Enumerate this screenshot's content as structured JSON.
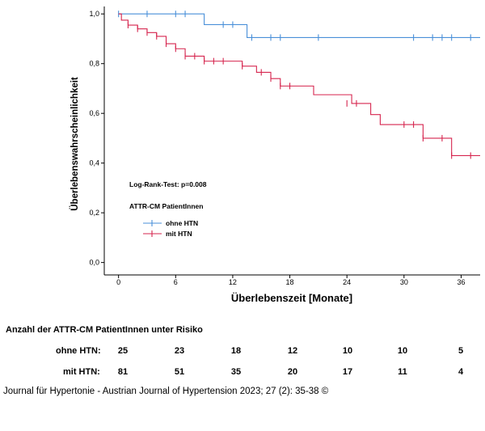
{
  "chart_data": {
    "type": "line",
    "subtype": "kaplan-meier",
    "xlabel": "Überlebenszeit [Monate]",
    "ylabel": "Überlebenswahrscheinlichkeit",
    "xlim": [
      -1.5,
      38
    ],
    "ylim": [
      -0.05,
      1.03
    ],
    "x_ticks": [
      0,
      6,
      12,
      18,
      24,
      30,
      36
    ],
    "y_ticks": [
      0.0,
      0.2,
      0.4,
      0.6,
      0.8,
      1.0
    ],
    "y_tick_labels": [
      "0,0",
      "0,2",
      "0,4",
      "0,6",
      "0,8",
      "1,0"
    ],
    "annotation": "Log-Rank-Test: p=0.008",
    "legend_title": "ATTR-CM PatientInnen",
    "series": [
      {
        "name": "ohne HTN",
        "color": "#4a90d9",
        "steps": [
          [
            0,
            1.0
          ],
          [
            9,
            0.957
          ],
          [
            13.5,
            0.905
          ],
          [
            38,
            0.905
          ]
        ],
        "censored": [
          [
            0,
            1.0
          ],
          [
            3,
            1.0
          ],
          [
            6,
            1.0
          ],
          [
            7,
            1.0
          ],
          [
            11,
            0.957
          ],
          [
            12,
            0.957
          ],
          [
            14,
            0.905
          ],
          [
            16,
            0.905
          ],
          [
            17,
            0.905
          ],
          [
            21,
            0.905
          ],
          [
            31,
            0.905
          ],
          [
            33,
            0.905
          ],
          [
            34,
            0.905
          ],
          [
            35,
            0.905
          ],
          [
            37,
            0.905
          ]
        ]
      },
      {
        "name": "mit HTN",
        "color": "#d6264f",
        "steps": [
          [
            0,
            1.0
          ],
          [
            0.3,
            0.975
          ],
          [
            1,
            0.955
          ],
          [
            2,
            0.94
          ],
          [
            3,
            0.925
          ],
          [
            4,
            0.91
          ],
          [
            5,
            0.88
          ],
          [
            6,
            0.86
          ],
          [
            7,
            0.83
          ],
          [
            9,
            0.81
          ],
          [
            13,
            0.79
          ],
          [
            14.5,
            0.765
          ],
          [
            16,
            0.74
          ],
          [
            17,
            0.71
          ],
          [
            20.5,
            0.675
          ],
          [
            24.5,
            0.64
          ],
          [
            26.5,
            0.595
          ],
          [
            27.5,
            0.555
          ],
          [
            32,
            0.5
          ],
          [
            35,
            0.43
          ],
          [
            38,
            0.43
          ]
        ],
        "censored": [
          [
            1,
            0.955
          ],
          [
            2,
            0.94
          ],
          [
            3,
            0.925
          ],
          [
            4,
            0.91
          ],
          [
            5,
            0.88
          ],
          [
            6,
            0.86
          ],
          [
            7,
            0.83
          ],
          [
            8,
            0.83
          ],
          [
            9,
            0.81
          ],
          [
            10,
            0.81
          ],
          [
            11,
            0.81
          ],
          [
            13,
            0.79
          ],
          [
            15,
            0.765
          ],
          [
            16,
            0.74
          ],
          [
            17,
            0.71
          ],
          [
            18,
            0.71
          ],
          [
            24,
            0.64
          ],
          [
            25,
            0.64
          ],
          [
            30,
            0.555
          ],
          [
            31,
            0.555
          ],
          [
            32,
            0.5
          ],
          [
            34,
            0.5
          ],
          [
            35,
            0.43
          ],
          [
            37,
            0.43
          ]
        ]
      }
    ]
  },
  "risk_table": {
    "title": "Anzahl der ATTR-CM PatientInnen unter Risiko",
    "rows": [
      {
        "label": "ohne HTN:",
        "values": [
          "25",
          "23",
          "18",
          "12",
          "10",
          "10",
          "5"
        ]
      },
      {
        "label": "mit HTN:",
        "values": [
          "81",
          "51",
          "35",
          "20",
          "17",
          "11",
          "4"
        ]
      }
    ]
  },
  "citation": "Journal für Hypertonie - Austrian Journal of Hypertension 2023; 27 (2): 35-38 ©"
}
